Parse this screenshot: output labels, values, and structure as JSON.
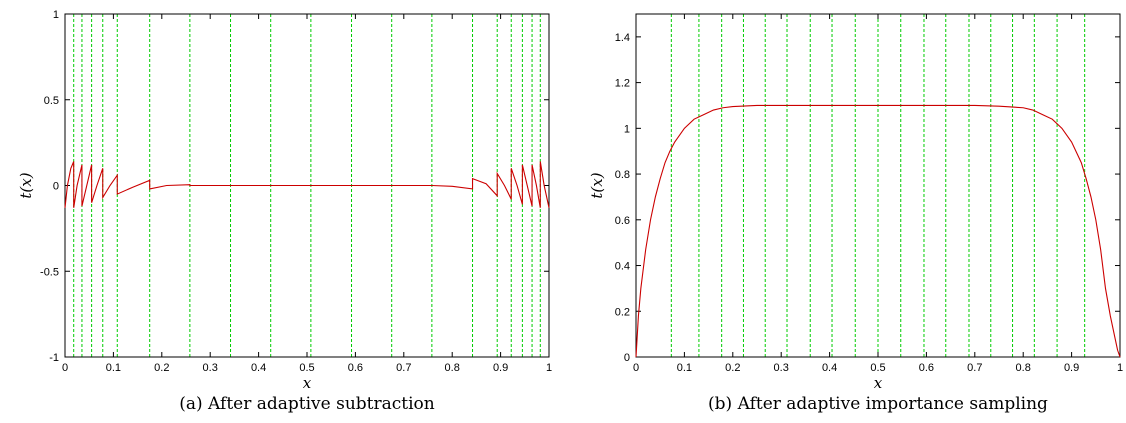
{
  "chart_data": [
    {
      "type": "line",
      "caption": "(a) After adaptive subtraction",
      "xlabel": "x",
      "ylabel": "t(x)",
      "xlim": [
        0,
        1
      ],
      "ylim": [
        -1,
        1
      ],
      "xticks": [
        "0",
        "0.1",
        "0.2",
        "0.3",
        "0.4",
        "0.5",
        "0.6",
        "0.7",
        "0.8",
        "0.9",
        "1"
      ],
      "yticks": [
        "-1",
        "-0.5",
        "0",
        "0.5",
        "1"
      ],
      "ytick_values": [
        -1,
        -0.5,
        0,
        0.5,
        1
      ],
      "grid_x": [
        0.018,
        0.035,
        0.055,
        0.078,
        0.108,
        0.175,
        0.258,
        0.342,
        0.425,
        0.508,
        0.592,
        0.675,
        0.758,
        0.842,
        0.893,
        0.922,
        0.945,
        0.965,
        0.982
      ],
      "series": [
        {
          "color": "#cc0000",
          "x": [
            0,
            0.005,
            0.012,
            0.018,
            0.018,
            0.025,
            0.035,
            0.035,
            0.045,
            0.055,
            0.055,
            0.066,
            0.078,
            0.078,
            0.093,
            0.108,
            0.108,
            0.14,
            0.175,
            0.175,
            0.21,
            0.258,
            0.258,
            0.3,
            0.342,
            0.425,
            0.508,
            0.592,
            0.675,
            0.758,
            0.758,
            0.8,
            0.842,
            0.842,
            0.87,
            0.893,
            0.893,
            0.908,
            0.922,
            0.922,
            0.934,
            0.945,
            0.945,
            0.955,
            0.965,
            0.965,
            0.974,
            0.982,
            0.982,
            0.99,
            1.0
          ],
          "y": [
            -0.13,
            0.0,
            0.1,
            0.14,
            -0.13,
            0.0,
            0.12,
            -0.12,
            0.0,
            0.12,
            -0.1,
            0.0,
            0.1,
            -0.07,
            0.0,
            0.06,
            -0.05,
            -0.01,
            0.03,
            -0.02,
            0.0,
            0.005,
            0.0,
            0.0,
            0.0,
            0.0,
            0.0,
            0.0,
            0.0,
            0.0,
            0.0,
            -0.005,
            -0.02,
            0.04,
            0.01,
            -0.06,
            0.07,
            0.0,
            -0.08,
            0.1,
            0.0,
            -0.11,
            0.12,
            0.0,
            -0.12,
            0.12,
            0.0,
            -0.13,
            0.14,
            0.0,
            -0.13
          ]
        }
      ]
    },
    {
      "type": "line",
      "caption": "(b) After adaptive importance sampling",
      "xlabel": "x",
      "ylabel": "t(x)",
      "xlim": [
        0,
        1
      ],
      "ylim": [
        0,
        1.5
      ],
      "xticks": [
        "0",
        "0.1",
        "0.2",
        "0.3",
        "0.4",
        "0.5",
        "0.6",
        "0.7",
        "0.8",
        "0.9",
        "1"
      ],
      "yticks": [
        "0",
        "0.2",
        "0.4",
        "0.6",
        "0.8",
        "1",
        "1.2",
        "1.4"
      ],
      "ytick_values": [
        0,
        0.2,
        0.4,
        0.6,
        0.8,
        1,
        1.2,
        1.4
      ],
      "grid_x": [
        0.073,
        0.13,
        0.177,
        0.222,
        0.267,
        0.312,
        0.36,
        0.405,
        0.453,
        0.5,
        0.547,
        0.595,
        0.64,
        0.688,
        0.733,
        0.778,
        0.823,
        0.87,
        0.927
      ],
      "series": [
        {
          "color": "#cc0000",
          "x": [
            0,
            0.005,
            0.01,
            0.02,
            0.03,
            0.04,
            0.05,
            0.06,
            0.07,
            0.08,
            0.1,
            0.12,
            0.14,
            0.16,
            0.18,
            0.2,
            0.25,
            0.3,
            0.4,
            0.5,
            0.6,
            0.7,
            0.75,
            0.8,
            0.82,
            0.84,
            0.86,
            0.88,
            0.9,
            0.92,
            0.93,
            0.94,
            0.95,
            0.96,
            0.97,
            0.98,
            0.99,
            0.995,
            1.0
          ],
          "y": [
            0.0,
            0.18,
            0.3,
            0.47,
            0.6,
            0.7,
            0.78,
            0.85,
            0.9,
            0.94,
            1.0,
            1.04,
            1.06,
            1.08,
            1.09,
            1.095,
            1.1,
            1.1,
            1.1,
            1.1,
            1.1,
            1.1,
            1.097,
            1.09,
            1.08,
            1.06,
            1.04,
            1.0,
            0.94,
            0.85,
            0.78,
            0.7,
            0.6,
            0.47,
            0.3,
            0.18,
            0.08,
            0.03,
            0.0
          ]
        }
      ]
    }
  ]
}
